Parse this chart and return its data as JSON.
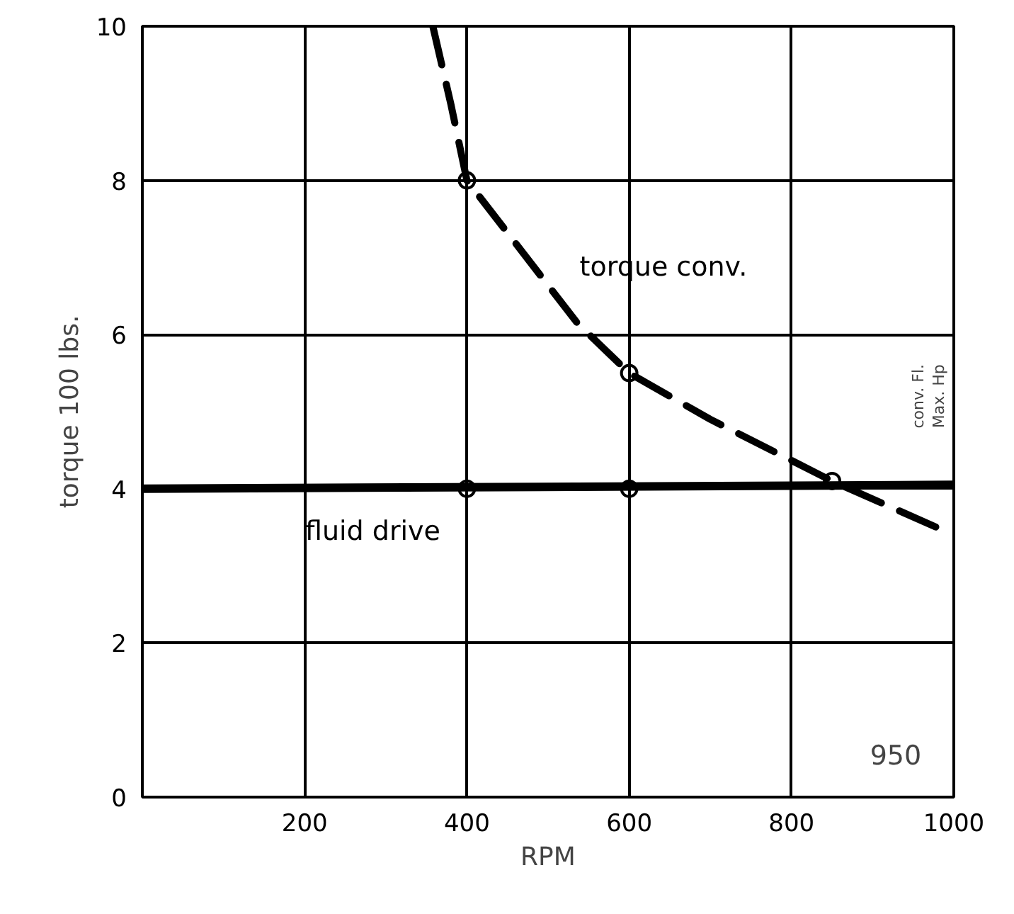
{
  "chart_data": {
    "type": "line",
    "xlabel": "RPM",
    "ylabel": "torque 100 lbs.",
    "xlim": [
      0,
      1000
    ],
    "ylim": [
      0,
      10
    ],
    "xticks": [
      {
        "value": 0,
        "label": null
      },
      200,
      400,
      600,
      800,
      1000
    ],
    "yticks": [
      0,
      2,
      4,
      6,
      8,
      10
    ],
    "grid": true,
    "legend": false,
    "series": [
      {
        "name": "torque conv.",
        "color": "#000000",
        "line_style": "dashed",
        "marker": "none",
        "x": [
          358,
          380,
          400,
          536,
          600,
          700,
          850,
          1000
        ],
        "values": [
          10,
          9,
          8,
          6.15,
          5.5,
          4.9,
          4.1,
          3.4
        ]
      },
      {
        "name": "fluid drive",
        "color": "#000000",
        "line_style": "solid",
        "marker": "none",
        "x": [
          0,
          1000
        ],
        "values": [
          4,
          4.05
        ]
      },
      {
        "type": "scatter",
        "color": "#000000",
        "marker": "circle",
        "x": [
          400,
          600,
          400,
          600,
          850
        ],
        "values": [
          4,
          4,
          8,
          5.5,
          4.1
        ]
      }
    ],
    "annotations": [
      "conv. Fl.",
      "Max. Hp",
      "950"
    ]
  }
}
